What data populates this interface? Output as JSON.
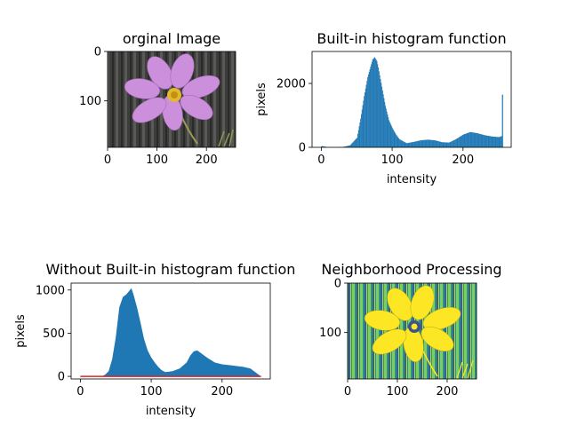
{
  "chart_data": [
    {
      "type": "image",
      "title": "orginal Image",
      "xticks": [
        "0",
        "100",
        "200"
      ],
      "yticks": [
        "0",
        "100"
      ],
      "xlim": [
        0,
        259
      ],
      "ylim": [
        194,
        0
      ],
      "description_colors": {
        "background": "#3f3f3d",
        "petals": "#cc8fdc",
        "center": "#e3b82a",
        "stem": "#9c9a55"
      }
    },
    {
      "type": "bar",
      "title": "Built-in histogram function",
      "xlabel": "intensity",
      "ylabel": "pixels",
      "xticks": [
        "0",
        "100",
        "200"
      ],
      "yticks": [
        "0",
        "2000"
      ],
      "xlim": [
        -13,
        268
      ],
      "ylim": [
        0,
        3000
      ],
      "color": "#1f77b4",
      "x": [
        0,
        10,
        20,
        30,
        40,
        50,
        55,
        60,
        65,
        70,
        72,
        75,
        78,
        80,
        85,
        90,
        95,
        100,
        105,
        110,
        120,
        130,
        140,
        150,
        160,
        170,
        180,
        190,
        200,
        210,
        220,
        230,
        240,
        250,
        254,
        255
      ],
      "values": [
        40,
        0,
        0,
        10,
        60,
        300,
        900,
        1600,
        2200,
        2600,
        2750,
        2820,
        2700,
        2500,
        1900,
        1300,
        850,
        600,
        400,
        250,
        130,
        170,
        220,
        240,
        220,
        160,
        150,
        260,
        400,
        480,
        440,
        380,
        340,
        320,
        350,
        1650
      ]
    },
    {
      "type": "area",
      "title": "Without Built-in histogram function",
      "xlabel": "intensity",
      "ylabel": "pixels",
      "xticks": [
        "0",
        "100",
        "200"
      ],
      "yticks": [
        "0",
        "500",
        "1000"
      ],
      "xlim": [
        -13,
        268
      ],
      "ylim": [
        -30,
        1080
      ],
      "color": "#1f77b4",
      "line_color": "#d62728",
      "x": [
        0,
        30,
        35,
        40,
        45,
        50,
        55,
        60,
        65,
        70,
        72,
        75,
        80,
        85,
        90,
        95,
        100,
        105,
        110,
        115,
        120,
        130,
        140,
        150,
        155,
        160,
        165,
        170,
        175,
        180,
        190,
        200,
        210,
        220,
        230,
        240,
        250,
        255
      ],
      "values": [
        0,
        0,
        20,
        60,
        200,
        450,
        800,
        920,
        950,
        1000,
        1020,
        950,
        800,
        620,
        430,
        300,
        220,
        160,
        110,
        70,
        50,
        60,
        90,
        160,
        240,
        290,
        300,
        270,
        240,
        210,
        160,
        140,
        130,
        120,
        110,
        90,
        30,
        0
      ]
    },
    {
      "type": "heatmap",
      "title": "Neighborhood Processing",
      "xticks": [
        "0",
        "100",
        "200"
      ],
      "yticks": [
        "0",
        "100"
      ],
      "xlim": [
        0,
        259
      ],
      "ylim": [
        194,
        0
      ],
      "colormap": [
        "#440154",
        "#3b528b",
        "#21918c",
        "#5ec962",
        "#fde725"
      ]
    }
  ]
}
